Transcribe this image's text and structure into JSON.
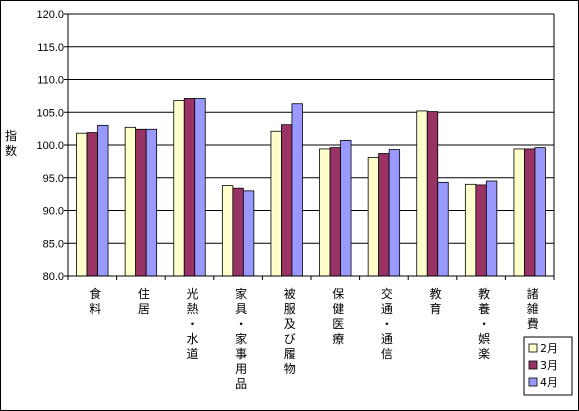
{
  "chart_data": {
    "type": "bar",
    "ylabel": "指数",
    "ylim": [
      80.0,
      120.0
    ],
    "yticks": [
      80.0,
      85.0,
      90.0,
      95.0,
      100.0,
      105.0,
      110.0,
      115.0,
      120.0
    ],
    "grid": true,
    "legend_position": "bottom-right",
    "categories": [
      "食料",
      "住居",
      "光熱・水道",
      "家具・家事用品",
      "被服及び履物",
      "保健医療",
      "交通・通信",
      "教育",
      "教養・娯楽",
      "諸雑費"
    ],
    "series": [
      {
        "name": "2月",
        "color": "#ffffcc",
        "values": [
          101.8,
          102.7,
          106.8,
          93.8,
          102.1,
          99.4,
          98.1,
          105.2,
          94.0,
          99.4
        ]
      },
      {
        "name": "3月",
        "color": "#993366",
        "values": [
          101.9,
          102.4,
          107.1,
          93.4,
          103.1,
          99.6,
          98.7,
          105.1,
          93.9,
          99.4
        ]
      },
      {
        "name": "4月",
        "color": "#9999ff",
        "values": [
          103.0,
          102.4,
          107.1,
          93.0,
          106.3,
          100.7,
          99.3,
          94.3,
          94.5,
          99.6
        ]
      }
    ]
  }
}
